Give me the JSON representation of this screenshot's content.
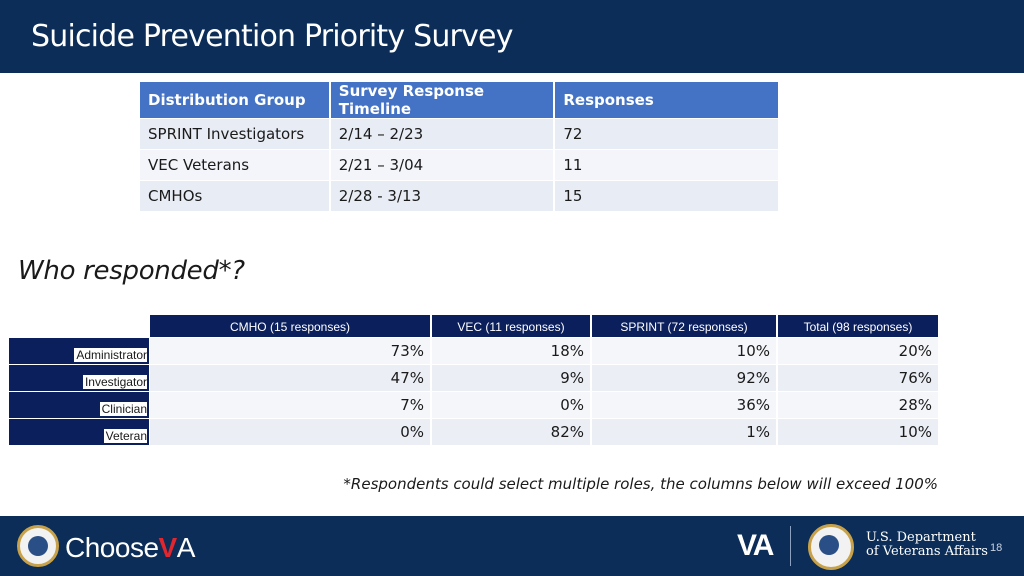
{
  "header": {
    "title": "Suicide Prevention Priority Survey"
  },
  "distribution_table": {
    "headers": [
      "Distribution Group",
      "Survey Response Timeline",
      "Responses"
    ],
    "rows": [
      [
        "SPRINT Investigators",
        "2/14 – 2/23",
        "72"
      ],
      [
        "VEC Veterans",
        "2/21 – 3/04",
        "11"
      ],
      [
        "CMHOs",
        "2/28 - 3/13",
        "15"
      ]
    ]
  },
  "section_title": "Who responded*?",
  "response_table": {
    "headers": [
      "CMHO (15 responses)",
      "VEC (11 responses)",
      "SPRINT (72 responses)",
      "Total (98 responses)"
    ],
    "row_labels": [
      "Administrator",
      "Investigator",
      "Clinician",
      "Veteran"
    ],
    "rows": [
      [
        "73%",
        "18%",
        "10%",
        "20%"
      ],
      [
        "47%",
        "9%",
        "92%",
        "76%"
      ],
      [
        "7%",
        "0%",
        "36%",
        "28%"
      ],
      [
        "0%",
        "82%",
        "1%",
        "10%"
      ]
    ]
  },
  "footnote": "*Respondents could select multiple roles, the columns below will exceed 100%",
  "footer": {
    "brand_choose": "Choose",
    "brand_v": "V",
    "brand_a": "A",
    "va_logo": "VA",
    "dept_line1": "U.S. Department",
    "dept_line2": "of Veterans Affairs",
    "page_number": "18"
  }
}
